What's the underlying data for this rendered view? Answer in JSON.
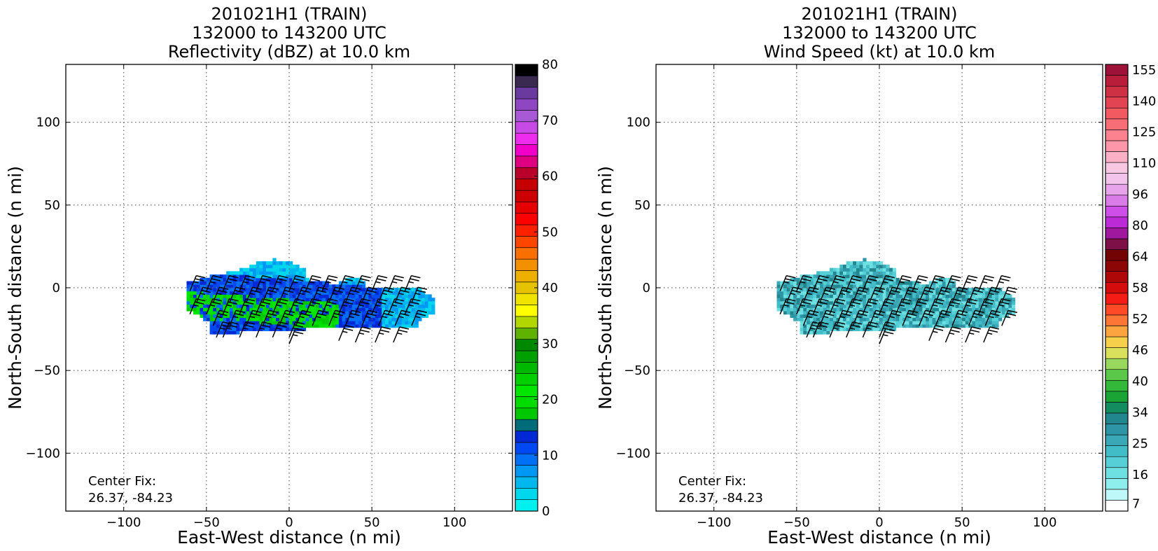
{
  "chart_data": [
    {
      "type": "heatmap",
      "title": [
        "201021H1 (TRAIN)",
        "132000 to 143200 UTC",
        "Reflectivity (dBZ) at 10.0 km"
      ],
      "xlabel": "East-West distance (n mi)",
      "ylabel": "North-South distance (n mi)",
      "xlim": [
        -135,
        135
      ],
      "ylim": [
        -135,
        135
      ],
      "xticks": [
        -100,
        -50,
        0,
        50,
        100
      ],
      "yticks": [
        -100,
        -50,
        0,
        50,
        100
      ],
      "grid": true,
      "annotation": [
        "Center Fix:",
        "26.37, -84.23"
      ],
      "colorbar": {
        "range": [
          0,
          80
        ],
        "ticks": [
          0,
          10,
          20,
          30,
          40,
          50,
          60,
          70,
          80
        ],
        "colors": [
          "#00efef",
          "#00d6ec",
          "#00b8ee",
          "#0097f5",
          "#0071f7",
          "#0049f2",
          "#0028d4",
          "#006b79",
          "#00c800",
          "#00dc00",
          "#00e600",
          "#00d000",
          "#00b800",
          "#00a000",
          "#008800",
          "#5fb300",
          "#b2d600",
          "#ffff00",
          "#f0e300",
          "#e6c300",
          "#eeb000",
          "#f29000",
          "#fa7000",
          "#ff4600",
          "#ff2000",
          "#ff0000",
          "#e60000",
          "#cc0000",
          "#c60000",
          "#b8002a",
          "#de0080",
          "#f000c8",
          "#ee2cee",
          "#c84ae6",
          "#a85ad6",
          "#8f46c2",
          "#6a3aa0",
          "#3a2a52",
          "#000000"
        ]
      },
      "field": {
        "description_units": "dBZ",
        "echo_extent_x": [
          -62,
          86
        ],
        "echo_extent_y": [
          -28,
          16
        ],
        "dominant_values": [
          8,
          14,
          20,
          24
        ]
      },
      "wind_barbs_kt_approx": 25
    },
    {
      "type": "heatmap",
      "title": [
        "201021H1 (TRAIN)",
        "132000 to 143200 UTC",
        "Wind Speed (kt) at 10.0 km"
      ],
      "xlabel": "East-West distance (n mi)",
      "ylabel": "North-South distance (n mi)",
      "xlim": [
        -135,
        135
      ],
      "ylim": [
        -135,
        135
      ],
      "xticks": [
        -100,
        -50,
        0,
        50,
        100
      ],
      "yticks": [
        -100,
        -50,
        0,
        50,
        100
      ],
      "grid": true,
      "annotation": [
        "Center Fix:",
        "26.37, -84.23"
      ],
      "colorbar": {
        "tick_labels": [
          "7",
          "16",
          "25",
          "34",
          "40",
          "46",
          "52",
          "58",
          "64",
          "80",
          "96",
          "110",
          "125",
          "140",
          "155"
        ],
        "colors": [
          "#ffffff",
          "#bff8f8",
          "#8eeeee",
          "#6ee0e2",
          "#56d0d6",
          "#42bcc6",
          "#3aa8b6",
          "#2e95a6",
          "#22868e",
          "#138c60",
          "#1aa436",
          "#34b83a",
          "#5cc84a",
          "#98d85e",
          "#d8e05c",
          "#f6d04a",
          "#fba440",
          "#fd7636",
          "#ff4a28",
          "#f41c14",
          "#d40c0c",
          "#ae0808",
          "#8c0606",
          "#720404",
          "#7e1048",
          "#a0189e",
          "#bc2ad6",
          "#ce4ee8",
          "#da7ce8",
          "#e8a4ea",
          "#f2c4ec",
          "#f8c8e0",
          "#fcb0c6",
          "#fc96a8",
          "#fd8290",
          "#f76e76",
          "#f05a60",
          "#e24454",
          "#ce3044",
          "#b81e3a",
          "#9c1238"
        ]
      },
      "field": {
        "description_units": "kt",
        "echo_extent_x": [
          -62,
          80
        ],
        "echo_extent_y": [
          -28,
          16
        ],
        "dominant_values": [
          14,
          20,
          26
        ]
      },
      "wind_barbs_kt_approx": 25
    }
  ]
}
